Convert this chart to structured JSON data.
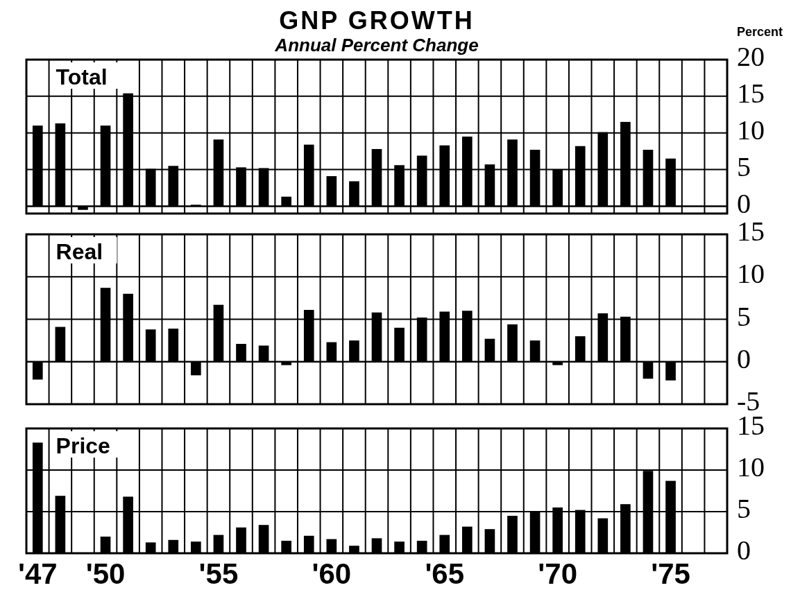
{
  "chart_data": [
    {
      "type": "bar",
      "title": "GNP GROWTH",
      "subtitle": "Annual Percent Change",
      "ylabel": "Percent",
      "annotations": [
        "Total"
      ],
      "color": "#000000",
      "x": [
        1947,
        1948,
        1949,
        1950,
        1951,
        1952,
        1953,
        1954,
        1955,
        1956,
        1957,
        1958,
        1959,
        1960,
        1961,
        1962,
        1963,
        1964,
        1965,
        1966,
        1967,
        1968,
        1969,
        1970,
        1971,
        1972,
        1973,
        1974,
        1975
      ],
      "values": [
        11.0,
        11.3,
        -0.5,
        11.0,
        15.4,
        5.1,
        5.5,
        0.2,
        9.1,
        5.3,
        5.2,
        1.3,
        8.4,
        4.1,
        3.4,
        7.8,
        5.6,
        6.9,
        8.3,
        9.5,
        5.7,
        9.1,
        7.7,
        5.0,
        8.2,
        10.1,
        11.5,
        7.7,
        6.5
      ],
      "xlim": [
        1946.5,
        1977.5
      ],
      "ylim": [
        -1,
        20
      ],
      "yticks": [
        0,
        5,
        10,
        15,
        20
      ],
      "xticks": [
        {
          "value": 1946.5,
          "label": null
        },
        {
          "value": 1947.5,
          "label": null
        },
        {
          "value": 1948.5,
          "label": null
        },
        {
          "value": 1949.5,
          "label": null
        },
        {
          "value": 1950.5,
          "label": null
        },
        {
          "value": 1951.5,
          "label": null
        },
        {
          "value": 1952.5,
          "label": null
        },
        {
          "value": 1953.5,
          "label": null
        },
        {
          "value": 1954.5,
          "label": null
        },
        {
          "value": 1955.5,
          "label": null
        },
        {
          "value": 1956.5,
          "label": null
        },
        {
          "value": 1957.5,
          "label": null
        },
        {
          "value": 1958.5,
          "label": null
        },
        {
          "value": 1959.5,
          "label": null
        },
        {
          "value": 1960.5,
          "label": null
        },
        {
          "value": 1961.5,
          "label": null
        },
        {
          "value": 1962.5,
          "label": null
        },
        {
          "value": 1963.5,
          "label": null
        },
        {
          "value": 1964.5,
          "label": null
        },
        {
          "value": 1965.5,
          "label": null
        },
        {
          "value": 1966.5,
          "label": null
        },
        {
          "value": 1967.5,
          "label": null
        },
        {
          "value": 1968.5,
          "label": null
        },
        {
          "value": 1969.5,
          "label": null
        },
        {
          "value": 1970.5,
          "label": null
        },
        {
          "value": 1971.5,
          "label": null
        },
        {
          "value": 1972.5,
          "label": null
        },
        {
          "value": 1973.5,
          "label": null
        },
        {
          "value": 1974.5,
          "label": null
        },
        {
          "value": 1975.5,
          "label": null
        },
        {
          "value": 1976.5,
          "label": null
        },
        {
          "value": 1977.5,
          "label": null
        }
      ],
      "grid": true,
      "tick_labels": "y"
    },
    {
      "type": "bar",
      "annotations": [
        "Real"
      ],
      "color": "#000000",
      "x": [
        1947,
        1948,
        1950,
        1951,
        1952,
        1953,
        1954,
        1955,
        1956,
        1957,
        1958,
        1959,
        1960,
        1961,
        1962,
        1963,
        1964,
        1965,
        1966,
        1967,
        1968,
        1969,
        1970,
        1971,
        1972,
        1973,
        1974,
        1975
      ],
      "values": [
        -2.1,
        4.1,
        8.7,
        8.0,
        3.8,
        3.9,
        -1.6,
        6.7,
        2.1,
        1.9,
        -0.4,
        6.1,
        2.3,
        2.5,
        5.8,
        4.0,
        5.2,
        5.9,
        6.0,
        2.7,
        4.4,
        2.5,
        -0.4,
        3.0,
        5.7,
        5.3,
        -2.0,
        -2.2
      ],
      "xlim": [
        1946.5,
        1977.5
      ],
      "ylim": [
        -5,
        15
      ],
      "yticks": [
        -5,
        0,
        5,
        10,
        15
      ],
      "xticks": [
        {
          "value": 1946.5,
          "label": null
        },
        {
          "value": 1947.5,
          "label": null
        },
        {
          "value": 1948.5,
          "label": null
        },
        {
          "value": 1949.5,
          "label": null
        },
        {
          "value": 1950.5,
          "label": null
        },
        {
          "value": 1951.5,
          "label": null
        },
        {
          "value": 1952.5,
          "label": null
        },
        {
          "value": 1953.5,
          "label": null
        },
        {
          "value": 1954.5,
          "label": null
        },
        {
          "value": 1955.5,
          "label": null
        },
        {
          "value": 1956.5,
          "label": null
        },
        {
          "value": 1957.5,
          "label": null
        },
        {
          "value": 1958.5,
          "label": null
        },
        {
          "value": 1959.5,
          "label": null
        },
        {
          "value": 1960.5,
          "label": null
        },
        {
          "value": 1961.5,
          "label": null
        },
        {
          "value": 1962.5,
          "label": null
        },
        {
          "value": 1963.5,
          "label": null
        },
        {
          "value": 1964.5,
          "label": null
        },
        {
          "value": 1965.5,
          "label": null
        },
        {
          "value": 1966.5,
          "label": null
        },
        {
          "value": 1967.5,
          "label": null
        },
        {
          "value": 1968.5,
          "label": null
        },
        {
          "value": 1969.5,
          "label": null
        },
        {
          "value": 1970.5,
          "label": null
        },
        {
          "value": 1971.5,
          "label": null
        },
        {
          "value": 1972.5,
          "label": null
        },
        {
          "value": 1973.5,
          "label": null
        },
        {
          "value": 1974.5,
          "label": null
        },
        {
          "value": 1975.5,
          "label": null
        },
        {
          "value": 1976.5,
          "label": null
        },
        {
          "value": 1977.5,
          "label": null
        }
      ],
      "grid": true,
      "tick_labels": "y"
    },
    {
      "type": "bar",
      "annotations": [
        "Price"
      ],
      "color": "#000000",
      "x": [
        1947,
        1948,
        1950,
        1951,
        1952,
        1953,
        1954,
        1955,
        1956,
        1957,
        1958,
        1959,
        1960,
        1961,
        1962,
        1963,
        1964,
        1965,
        1966,
        1967,
        1968,
        1969,
        1970,
        1971,
        1972,
        1973,
        1974,
        1975
      ],
      "values": [
        13.3,
        6.9,
        2.0,
        6.8,
        1.3,
        1.6,
        1.4,
        2.2,
        3.1,
        3.4,
        1.5,
        2.1,
        1.7,
        0.9,
        1.8,
        1.4,
        1.5,
        2.2,
        3.2,
        2.9,
        4.5,
        5.0,
        5.5,
        5.2,
        4.2,
        5.9,
        9.9,
        8.7
      ],
      "xlim": [
        1946.5,
        1977.5
      ],
      "ylim": [
        0,
        15
      ],
      "yticks": [
        0,
        5,
        10,
        15
      ],
      "xticks": [
        {
          "value": 1947,
          "label": "'47"
        },
        {
          "value": 1950,
          "label": "'50"
        },
        {
          "value": 1955,
          "label": "'55"
        },
        {
          "value": 1960,
          "label": "'60"
        },
        {
          "value": 1965,
          "label": "'65"
        },
        {
          "value": 1970,
          "label": "'70"
        },
        {
          "value": 1975,
          "label": "'75"
        },
        {
          "value": 1946.5,
          "label": null
        },
        {
          "value": 1947.5,
          "label": null
        },
        {
          "value": 1948.5,
          "label": null
        },
        {
          "value": 1949.5,
          "label": null
        },
        {
          "value": 1950.5,
          "label": null
        },
        {
          "value": 1951.5,
          "label": null
        },
        {
          "value": 1952.5,
          "label": null
        },
        {
          "value": 1953.5,
          "label": null
        },
        {
          "value": 1954.5,
          "label": null
        },
        {
          "value": 1955.5,
          "label": null
        },
        {
          "value": 1956.5,
          "label": null
        },
        {
          "value": 1957.5,
          "label": null
        },
        {
          "value": 1958.5,
          "label": null
        },
        {
          "value": 1959.5,
          "label": null
        },
        {
          "value": 1960.5,
          "label": null
        },
        {
          "value": 1961.5,
          "label": null
        },
        {
          "value": 1962.5,
          "label": null
        },
        {
          "value": 1963.5,
          "label": null
        },
        {
          "value": 1964.5,
          "label": null
        },
        {
          "value": 1965.5,
          "label": null
        },
        {
          "value": 1966.5,
          "label": null
        },
        {
          "value": 1967.5,
          "label": null
        },
        {
          "value": 1968.5,
          "label": null
        },
        {
          "value": 1969.5,
          "label": null
        },
        {
          "value": 1970.5,
          "label": null
        },
        {
          "value": 1971.5,
          "label": null
        },
        {
          "value": 1972.5,
          "label": null
        },
        {
          "value": 1973.5,
          "label": null
        },
        {
          "value": 1974.5,
          "label": null
        },
        {
          "value": 1975.5,
          "label": null
        },
        {
          "value": 1976.5,
          "label": null
        },
        {
          "value": 1977.5,
          "label": null
        }
      ],
      "grid": true
    }
  ]
}
